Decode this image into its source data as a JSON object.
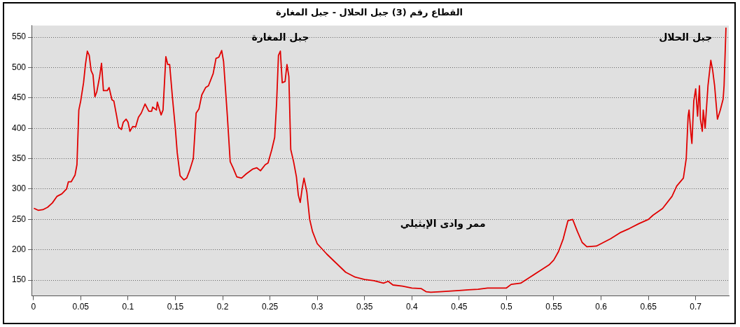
{
  "chart_data": {
    "type": "line",
    "title": "القطاع رقم (3) جبل الحلال - جبل المغارة",
    "x": [
      0.001,
      0.005,
      0.01,
      0.015,
      0.02,
      0.025,
      0.03,
      0.035,
      0.037,
      0.04,
      0.044,
      0.046,
      0.048,
      0.05,
      0.053,
      0.055,
      0.057,
      0.059,
      0.061,
      0.063,
      0.065,
      0.067,
      0.07,
      0.072,
      0.074,
      0.078,
      0.08,
      0.083,
      0.085,
      0.088,
      0.09,
      0.093,
      0.095,
      0.098,
      0.1,
      0.102,
      0.105,
      0.108,
      0.111,
      0.114,
      0.118,
      0.122,
      0.125,
      0.126,
      0.13,
      0.131,
      0.133,
      0.135,
      0.137,
      0.14,
      0.142,
      0.144,
      0.147,
      0.15,
      0.152,
      0.155,
      0.159,
      0.162,
      0.165,
      0.169,
      0.172,
      0.175,
      0.178,
      0.182,
      0.185,
      0.19,
      0.193,
      0.196,
      0.199,
      0.201,
      0.205,
      0.208,
      0.211,
      0.215,
      0.22,
      0.225,
      0.232,
      0.236,
      0.24,
      0.245,
      0.248,
      0.252,
      0.255,
      0.257,
      0.259,
      0.261,
      0.263,
      0.266,
      0.268,
      0.27,
      0.272,
      0.275,
      0.278,
      0.28,
      0.282,
      0.284,
      0.286,
      0.289,
      0.292,
      0.295,
      0.3,
      0.31,
      0.32,
      0.33,
      0.34,
      0.35,
      0.36,
      0.37,
      0.375,
      0.38,
      0.39,
      0.4,
      0.41,
      0.415,
      0.42,
      0.43,
      0.45,
      0.46,
      0.47,
      0.48,
      0.5,
      0.505,
      0.515,
      0.525,
      0.535,
      0.545,
      0.55,
      0.555,
      0.56,
      0.565,
      0.57,
      0.575,
      0.58,
      0.585,
      0.595,
      0.6,
      0.61,
      0.62,
      0.63,
      0.64,
      0.65,
      0.655,
      0.665,
      0.675,
      0.68,
      0.687,
      0.69,
      0.692,
      0.693,
      0.695,
      0.696,
      0.698,
      0.7,
      0.702,
      0.704,
      0.705,
      0.707,
      0.708,
      0.71,
      0.713,
      0.716,
      0.718,
      0.72,
      0.723,
      0.726,
      0.729,
      0.73,
      0.732
    ],
    "series": [
      {
        "color": "#e00000",
        "values": [
          268,
          265,
          266,
          270,
          277,
          288,
          292,
          300,
          312,
          312,
          323,
          340,
          430,
          445,
          475,
          505,
          527,
          520,
          495,
          488,
          452,
          460,
          485,
          507,
          462,
          462,
          467,
          447,
          445,
          420,
          402,
          398,
          410,
          415,
          410,
          395,
          403,
          402,
          418,
          425,
          440,
          428,
          428,
          435,
          430,
          443,
          432,
          422,
          430,
          518,
          505,
          505,
          450,
          400,
          360,
          322,
          315,
          318,
          330,
          350,
          425,
          432,
          455,
          467,
          470,
          490,
          515,
          517,
          528,
          510,
          420,
          345,
          335,
          320,
          318,
          325,
          333,
          335,
          330,
          340,
          343,
          365,
          385,
          440,
          520,
          527,
          475,
          477,
          505,
          485,
          365,
          345,
          320,
          290,
          278,
          300,
          318,
          295,
          250,
          230,
          210,
          193,
          178,
          163,
          155,
          151,
          149,
          145,
          148,
          142,
          140,
          137,
          136,
          131,
          130,
          131,
          133,
          134,
          135,
          137,
          137,
          143,
          145,
          155,
          165,
          175,
          183,
          197,
          218,
          248,
          250,
          230,
          212,
          205,
          206,
          210,
          218,
          228,
          235,
          243,
          250,
          257,
          268,
          288,
          305,
          318,
          350,
          420,
          430,
          390,
          375,
          445,
          465,
          420,
          470,
          415,
          395,
          430,
          400,
          470,
          512,
          495,
          470,
          415,
          430,
          448,
          470,
          565
        ]
      }
    ],
    "xlim": [
      -0.002,
      0.735
    ],
    "ylim": [
      124,
      569
    ],
    "xticks": [
      0,
      0.05,
      0.1,
      0.15,
      0.2,
      0.25,
      0.3,
      0.35,
      0.4,
      0.45,
      0.5,
      0.55,
      0.6,
      0.65,
      0.7
    ],
    "yticks": [
      150,
      200,
      250,
      300,
      350,
      400,
      450,
      500,
      550
    ],
    "grid": "y",
    "legend": false,
    "marker": "none",
    "line_style": "solid",
    "annotations": [
      "جبل المغارة",
      "ممر وادى الإيثيلي",
      "جبل الحلال"
    ]
  }
}
